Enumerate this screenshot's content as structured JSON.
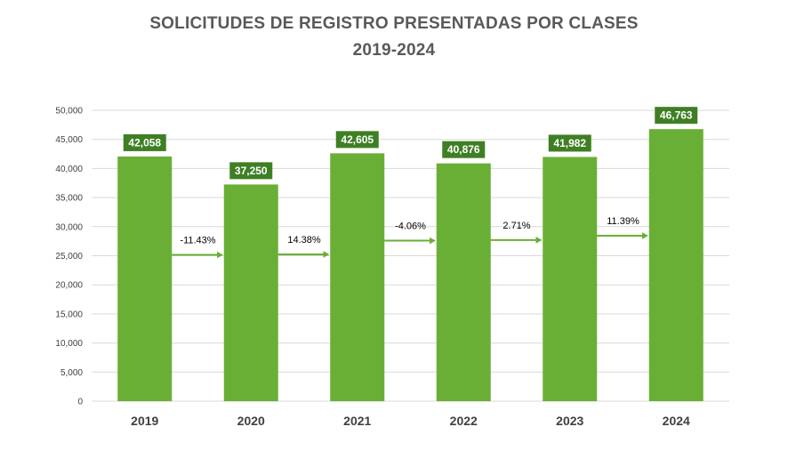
{
  "chart_data": {
    "type": "bar",
    "title_lines": [
      "SOLICITUDES DE REGISTRO PRESENTADAS POR CLASES",
      "2019-2024"
    ],
    "categories": [
      "2019",
      "2020",
      "2021",
      "2022",
      "2023",
      "2024"
    ],
    "values": [
      42058,
      37250,
      42605,
      40876,
      41982,
      46763
    ],
    "value_labels": [
      "42,058",
      "37,250",
      "42,605",
      "40,876",
      "41,982",
      "46,763"
    ],
    "changes": [
      {
        "from": "2019",
        "to": "2020",
        "label": "-11.43%"
      },
      {
        "from": "2020",
        "to": "2021",
        "label": "14.38%"
      },
      {
        "from": "2021",
        "to": "2022",
        "label": "-4.06%"
      },
      {
        "from": "2022",
        "to": "2023",
        "label": "2.71%"
      },
      {
        "from": "2023",
        "to": "2024",
        "label": "11.39%"
      }
    ],
    "ylim": [
      0,
      50000
    ],
    "yticks": [
      0,
      5000,
      10000,
      15000,
      20000,
      25000,
      30000,
      35000,
      40000,
      45000,
      50000
    ],
    "ytick_labels": [
      "0",
      "5,000",
      "10,000",
      "15,000",
      "20,000",
      "25,000",
      "30,000",
      "35,000",
      "40,000",
      "45,000",
      "50,000"
    ],
    "xlabel": "",
    "ylabel": "",
    "grid": true,
    "legend": "none",
    "colors": {
      "bar": "#6aaf35",
      "label_box": "#3f7f24",
      "label_text": "#ffffff",
      "arrow": "#6aaf35",
      "grid": "#d9d9d9",
      "title": "#595959",
      "axis_text": "#404040"
    }
  }
}
